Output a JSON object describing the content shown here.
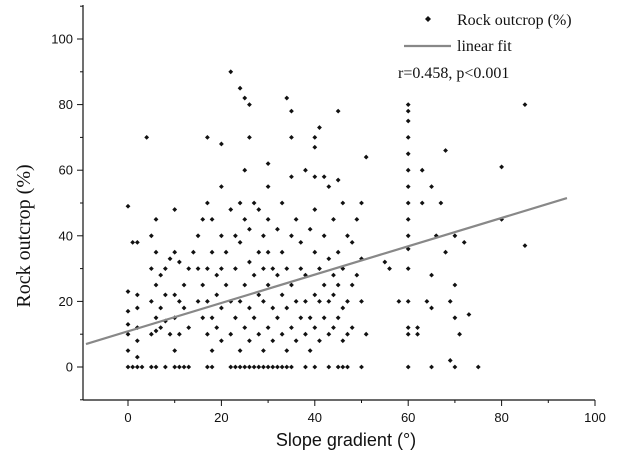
{
  "chart_data": {
    "type": "scatter",
    "xlabel": "Slope gradient (°)",
    "ylabel": "Rock outcrop (%)",
    "xlim": [
      -10,
      100
    ],
    "ylim": [
      -10,
      110
    ],
    "xticks": [
      0,
      20,
      40,
      60,
      80,
      100
    ],
    "yticks": [
      0,
      20,
      40,
      60,
      80,
      100
    ],
    "grid": false,
    "legend_position": "top-right",
    "annotation": "r=0.458, p<0.001",
    "series": [
      {
        "name": "Rock outcrop (%)",
        "kind": "scatter",
        "color": "#111111",
        "points": [
          [
            0,
            0
          ],
          [
            1,
            0
          ],
          [
            2,
            0
          ],
          [
            3,
            0
          ],
          [
            5,
            0
          ],
          [
            6,
            0
          ],
          [
            8,
            0
          ],
          [
            10,
            0
          ],
          [
            11,
            0
          ],
          [
            12,
            0
          ],
          [
            13,
            0
          ],
          [
            17,
            0
          ],
          [
            18,
            0
          ],
          [
            22,
            0
          ],
          [
            23,
            0
          ],
          [
            24,
            0
          ],
          [
            25,
            0
          ],
          [
            26,
            0
          ],
          [
            27,
            0
          ],
          [
            28,
            0
          ],
          [
            29,
            0
          ],
          [
            30,
            0
          ],
          [
            31,
            0
          ],
          [
            32,
            0
          ],
          [
            33,
            0
          ],
          [
            34,
            0
          ],
          [
            35,
            0
          ],
          [
            38,
            0
          ],
          [
            40,
            0
          ],
          [
            43,
            0
          ],
          [
            45,
            0
          ],
          [
            46,
            0
          ],
          [
            47,
            0
          ],
          [
            50,
            0
          ],
          [
            60,
            0
          ],
          [
            65,
            0
          ],
          [
            70,
            0
          ],
          [
            75,
            0
          ],
          [
            0,
            5
          ],
          [
            0,
            10
          ],
          [
            0,
            13
          ],
          [
            0,
            17
          ],
          [
            0,
            23
          ],
          [
            0,
            49
          ],
          [
            1,
            38
          ],
          [
            2,
            3
          ],
          [
            2,
            8
          ],
          [
            2,
            12
          ],
          [
            2,
            18
          ],
          [
            2,
            22
          ],
          [
            2,
            38
          ],
          [
            4,
            70
          ],
          [
            5,
            10
          ],
          [
            5,
            20
          ],
          [
            5,
            30
          ],
          [
            5,
            40
          ],
          [
            6,
            11
          ],
          [
            6,
            15
          ],
          [
            6,
            25
          ],
          [
            6,
            35
          ],
          [
            6,
            45
          ],
          [
            7,
            12
          ],
          [
            7,
            18
          ],
          [
            7,
            28
          ],
          [
            8,
            14
          ],
          [
            8,
            22
          ],
          [
            8,
            30
          ],
          [
            9,
            10
          ],
          [
            9,
            33
          ],
          [
            10,
            5
          ],
          [
            10,
            15
          ],
          [
            10,
            22
          ],
          [
            10,
            35
          ],
          [
            10,
            48
          ],
          [
            11,
            10
          ],
          [
            11,
            20
          ],
          [
            11,
            32
          ],
          [
            12,
            18
          ],
          [
            12,
            25
          ],
          [
            13,
            12
          ],
          [
            13,
            30
          ],
          [
            14,
            35
          ],
          [
            15,
            20
          ],
          [
            15,
            30
          ],
          [
            15,
            40
          ],
          [
            16,
            15
          ],
          [
            16,
            25
          ],
          [
            16,
            45
          ],
          [
            17,
            10
          ],
          [
            17,
            20
          ],
          [
            17,
            30
          ],
          [
            17,
            50
          ],
          [
            17,
            70
          ],
          [
            18,
            5
          ],
          [
            18,
            15
          ],
          [
            18,
            35
          ],
          [
            18,
            45
          ],
          [
            19,
            12
          ],
          [
            19,
            22
          ],
          [
            19,
            28
          ],
          [
            20,
            8
          ],
          [
            20,
            18
          ],
          [
            20,
            30
          ],
          [
            20,
            40
          ],
          [
            20,
            55
          ],
          [
            20,
            68
          ],
          [
            21,
            25
          ],
          [
            21,
            35
          ],
          [
            22,
            10
          ],
          [
            22,
            20
          ],
          [
            22,
            48
          ],
          [
            22,
            90
          ],
          [
            23,
            15
          ],
          [
            23,
            30
          ],
          [
            23,
            40
          ],
          [
            24,
            5
          ],
          [
            24,
            20
          ],
          [
            24,
            38
          ],
          [
            24,
            50
          ],
          [
            24,
            85
          ],
          [
            25,
            12
          ],
          [
            25,
            25
          ],
          [
            25,
            45
          ],
          [
            25,
            60
          ],
          [
            25,
            82
          ],
          [
            26,
            8
          ],
          [
            26,
            18
          ],
          [
            26,
            32
          ],
          [
            26,
            42
          ],
          [
            26,
            70
          ],
          [
            26,
            80
          ],
          [
            27,
            15
          ],
          [
            27,
            28
          ],
          [
            27,
            50
          ],
          [
            28,
            10
          ],
          [
            28,
            22
          ],
          [
            28,
            35
          ],
          [
            28,
            48
          ],
          [
            29,
            5
          ],
          [
            29,
            20
          ],
          [
            29,
            30
          ],
          [
            29,
            40
          ],
          [
            30,
            12
          ],
          [
            30,
            25
          ],
          [
            30,
            35
          ],
          [
            30,
            45
          ],
          [
            30,
            55
          ],
          [
            30,
            62
          ],
          [
            31,
            8
          ],
          [
            31,
            18
          ],
          [
            31,
            30
          ],
          [
            32,
            15
          ],
          [
            32,
            28
          ],
          [
            32,
            42
          ],
          [
            33,
            10
          ],
          [
            33,
            22
          ],
          [
            33,
            35
          ],
          [
            33,
            50
          ],
          [
            34,
            5
          ],
          [
            34,
            18
          ],
          [
            34,
            30
          ],
          [
            34,
            82
          ],
          [
            35,
            12
          ],
          [
            35,
            25
          ],
          [
            35,
            40
          ],
          [
            35,
            58
          ],
          [
            35,
            70
          ],
          [
            35,
            78
          ],
          [
            36,
            8
          ],
          [
            36,
            20
          ],
          [
            36,
            45
          ],
          [
            37,
            15
          ],
          [
            37,
            30
          ],
          [
            37,
            38
          ],
          [
            38,
            10
          ],
          [
            38,
            20
          ],
          [
            38,
            28
          ],
          [
            38,
            60
          ],
          [
            39,
            5
          ],
          [
            39,
            15
          ],
          [
            39,
            42
          ],
          [
            40,
            12
          ],
          [
            40,
            22
          ],
          [
            40,
            35
          ],
          [
            40,
            48
          ],
          [
            40,
            58
          ],
          [
            40,
            67
          ],
          [
            40,
            70
          ],
          [
            41,
            8
          ],
          [
            41,
            20
          ],
          [
            41,
            30
          ],
          [
            41,
            73
          ],
          [
            42,
            15
          ],
          [
            42,
            25
          ],
          [
            42,
            40
          ],
          [
            42,
            58
          ],
          [
            43,
            10
          ],
          [
            43,
            20
          ],
          [
            43,
            33
          ],
          [
            43,
            55
          ],
          [
            44,
            12
          ],
          [
            44,
            22
          ],
          [
            44,
            28
          ],
          [
            44,
            45
          ],
          [
            45,
            15
          ],
          [
            45,
            25
          ],
          [
            45,
            35
          ],
          [
            45,
            57
          ],
          [
            45,
            78
          ],
          [
            46,
            8
          ],
          [
            46,
            18
          ],
          [
            46,
            30
          ],
          [
            46,
            50
          ],
          [
            47,
            10
          ],
          [
            47,
            20
          ],
          [
            47,
            40
          ],
          [
            48,
            12
          ],
          [
            48,
            25
          ],
          [
            48,
            38
          ],
          [
            49,
            28
          ],
          [
            49,
            45
          ],
          [
            50,
            20
          ],
          [
            50,
            33
          ],
          [
            50,
            50
          ],
          [
            51,
            10
          ],
          [
            51,
            64
          ],
          [
            55,
            32
          ],
          [
            56,
            30
          ],
          [
            58,
            20
          ],
          [
            60,
            10
          ],
          [
            60,
            12
          ],
          [
            60,
            20
          ],
          [
            60,
            30
          ],
          [
            60,
            36
          ],
          [
            60,
            40
          ],
          [
            60,
            45
          ],
          [
            60,
            50
          ],
          [
            60,
            55
          ],
          [
            60,
            60
          ],
          [
            60,
            65
          ],
          [
            60,
            70
          ],
          [
            60,
            75
          ],
          [
            60,
            78
          ],
          [
            60,
            80
          ],
          [
            62,
            10
          ],
          [
            62,
            12
          ],
          [
            63,
            50
          ],
          [
            63,
            60
          ],
          [
            64,
            20
          ],
          [
            65,
            18
          ],
          [
            65,
            28
          ],
          [
            65,
            55
          ],
          [
            66,
            40
          ],
          [
            67,
            50
          ],
          [
            68,
            35
          ],
          [
            68,
            66
          ],
          [
            69,
            2
          ],
          [
            69,
            20
          ],
          [
            70,
            15
          ],
          [
            70,
            25
          ],
          [
            70,
            40
          ],
          [
            71,
            10
          ],
          [
            72,
            38
          ],
          [
            73,
            16
          ],
          [
            80,
            45
          ],
          [
            80,
            61
          ],
          [
            85,
            37
          ],
          [
            85,
            80
          ]
        ]
      },
      {
        "name": "linear fit",
        "kind": "line",
        "color": "#888888",
        "points": [
          [
            -9,
            7
          ],
          [
            94,
            51.5
          ]
        ]
      }
    ]
  }
}
